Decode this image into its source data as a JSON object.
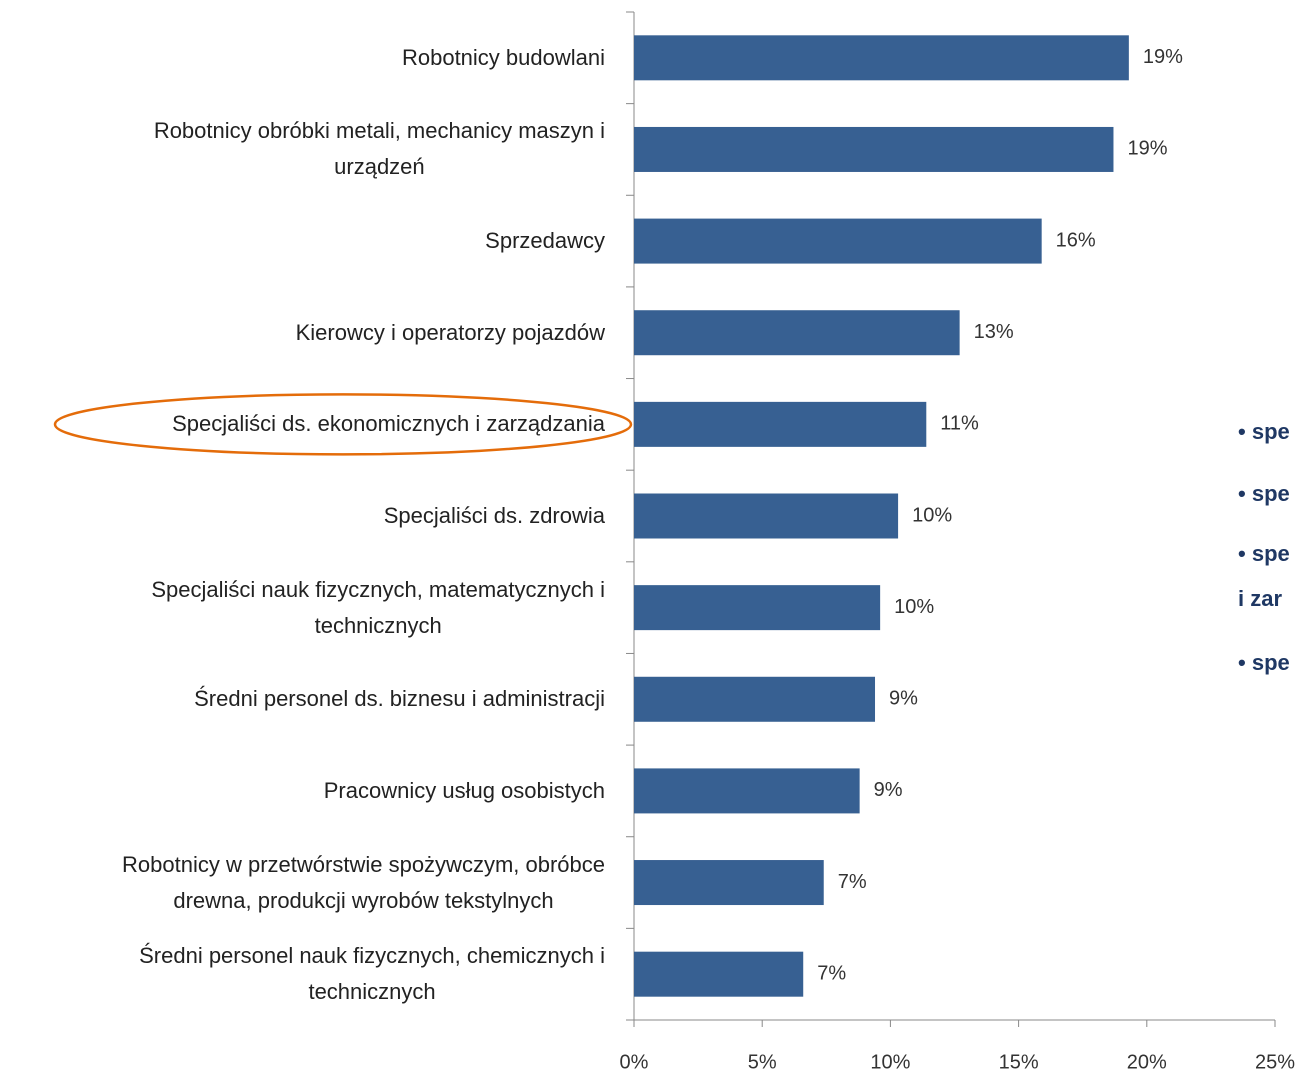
{
  "chart_data": {
    "type": "barh",
    "categories": [
      "Robotnicy budowlani",
      "Robotnicy obróbki metali, mechanicy maszyn i\nurządzeń",
      "Sprzedawcy",
      "Kierowcy i operatorzy pojazdów",
      "Specjaliści ds. ekonomicznych i zarządzania",
      "Specjaliści ds. zdrowia",
      "Specjaliści nauk fizycznych, matematycznych i\ntechnicznych",
      "Średni personel ds. biznesu i administracji",
      "Pracownicy usług osobistych",
      "Robotnicy w przetwórstwie spożywczym, obróbce\ndrewna, produkcji wyrobów tekstylnych",
      "Średni personel nauk fizycznych, chemicznych i\ntechnicznych"
    ],
    "values": [
      19.3,
      18.7,
      15.9,
      12.7,
      11.4,
      10.3,
      9.6,
      9.4,
      8.8,
      7.4,
      6.6
    ],
    "value_labels": [
      "19%",
      "19%",
      "16%",
      "13%",
      "11%",
      "10%",
      "10%",
      "9%",
      "9%",
      "7%",
      "7%"
    ],
    "color": "#376092",
    "xlim": [
      0,
      25
    ],
    "xticks": [
      {
        "value": 0,
        "label": "0%"
      },
      {
        "value": 5,
        "label": "5%"
      },
      {
        "value": 10,
        "label": "10%"
      },
      {
        "value": 15,
        "label": "15%"
      },
      {
        "value": 20,
        "label": "20%"
      },
      {
        "value": 25,
        "label": "25%"
      }
    ],
    "highlight": 4,
    "side_notes": [
      "spe",
      "spe",
      "spe",
      "i zar",
      "spe"
    ]
  }
}
